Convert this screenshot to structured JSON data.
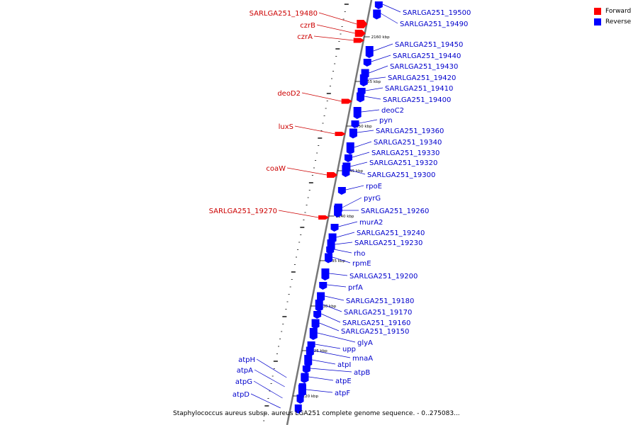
{
  "legend": {
    "forward_label": "Forward",
    "reverse_label": "Reverse",
    "forward_color": "#ff0000",
    "reverse_color": "#0000ff"
  },
  "caption": "Staphylococcus aureus subsp. aureus LGA251 complete genome sequence. - 0..275083...",
  "colors": {
    "axis": "#777777",
    "forward_label_text": "#cc0000",
    "reverse_label_text": "#0000cc",
    "tick": "#000000"
  },
  "scale_ticks": [
    "2160 kbp",
    "2155 kbp",
    "2150 kbp",
    "2145 kbp",
    "2140 kbp",
    "2135 kbp",
    "2130 kbp",
    "2125 kbp",
    "2120 kbp"
  ],
  "forward_genes": [
    "SARLGA251_19480",
    "czrB",
    "czrA",
    "deoD2",
    "luxS",
    "coaW",
    "SARLGA251_19270"
  ],
  "reverse_genes": [
    "SARLGA251_19500",
    "SARLGA251_19490",
    "SARLGA251_19450",
    "SARLGA251_19440",
    "SARLGA251_19430",
    "SARLGA251_19420",
    "SARLGA251_19410",
    "SARLGA251_19400",
    "deoC2",
    "pyn",
    "SARLGA251_19360",
    "SARLGA251_19340",
    "SARLGA251_19330",
    "SARLGA251_19320",
    "SARLGA251_19300",
    "rpoE",
    "pyrG",
    "SARLGA251_19260",
    "murA2",
    "SARLGA251_19240",
    "SARLGA251_19230",
    "rho",
    "rpmE",
    "SARLGA251_19200",
    "prfA",
    "SARLGA251_19180",
    "SARLGA251_19170",
    "SARLGA251_19160",
    "SARLGA251_19150",
    "glyA",
    "upp",
    "mnaA",
    "atpI",
    "atpB",
    "atpE",
    "atpF"
  ],
  "reverse_genes_left": [
    "atpH",
    "atpA",
    "atpG",
    "atpD"
  ]
}
